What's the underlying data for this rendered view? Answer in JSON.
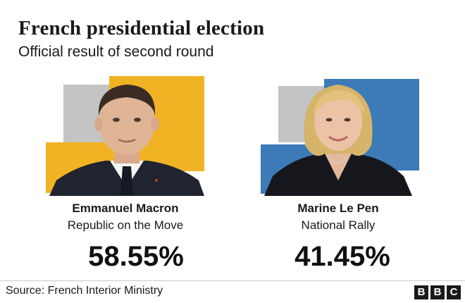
{
  "header": {
    "title": "French presidential election",
    "subtitle": "Official result of second round"
  },
  "chart_data": {
    "type": "table",
    "categories": [
      "Emmanuel Macron",
      "Marine Le Pen"
    ],
    "parties": [
      "Republic on the Move",
      "National Rally"
    ],
    "values_text": [
      "58.55%",
      "41.45%"
    ],
    "values": [
      58.55,
      41.45
    ],
    "unit": "%",
    "colors": {
      "macron": "#f0b323",
      "lepen": "#3d7ab8",
      "grey": "#c4c4c4"
    }
  },
  "footer": {
    "source": "Source: French Interior Ministry",
    "logo_letters": [
      "B",
      "B",
      "C"
    ]
  }
}
